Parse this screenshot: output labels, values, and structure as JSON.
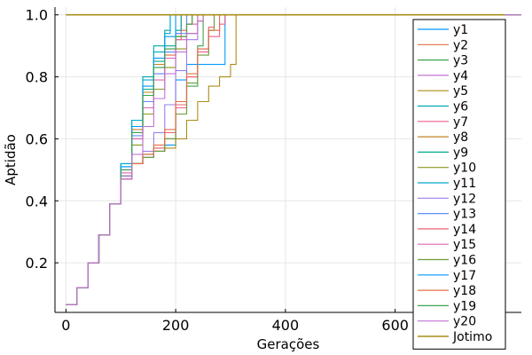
{
  "chart_data": {
    "type": "line",
    "xlabel": "Gerações",
    "ylabel": "Aptidão",
    "xlim": [
      -20,
      830
    ],
    "ylim": [
      0.04,
      1.025
    ],
    "xticks": [
      0,
      200,
      400,
      600
    ],
    "yticks": [
      0.2,
      0.4,
      0.6,
      0.8,
      1.0
    ],
    "xtick_labels": [
      "0",
      "200",
      "400",
      "600"
    ],
    "ytick_labels": [
      "0.2",
      "0.4",
      "0.6",
      "0.8",
      "1.0"
    ],
    "grid": true,
    "legend_position": "right",
    "series": [
      {
        "name": "y1",
        "color": "#009AFA",
        "x": [
          0,
          20,
          40,
          60,
          80,
          100,
          120,
          140,
          160,
          180,
          200,
          220,
          240,
          260,
          280,
          290,
          300
        ],
        "y": [
          0.065,
          0.12,
          0.2,
          0.29,
          0.39,
          0.48,
          0.52,
          0.54,
          0.56,
          0.58,
          0.79,
          0.84,
          0.84,
          0.84,
          0.84,
          1.0,
          1.0
        ]
      },
      {
        "name": "y2",
        "color": "#E36F47",
        "x": [
          0,
          20,
          40,
          60,
          80,
          100,
          120,
          140,
          160,
          180,
          200,
          210,
          220
        ],
        "y": [
          0.065,
          0.12,
          0.2,
          0.29,
          0.39,
          0.48,
          0.6,
          0.72,
          0.81,
          0.87,
          0.92,
          0.95,
          1.0
        ]
      },
      {
        "name": "y3",
        "color": "#3EA44E",
        "x": [
          0,
          20,
          40,
          60,
          80,
          100,
          120,
          140,
          160,
          180,
          200,
          220,
          240,
          250
        ],
        "y": [
          0.065,
          0.12,
          0.2,
          0.29,
          0.39,
          0.47,
          0.52,
          0.55,
          0.57,
          0.6,
          0.68,
          0.77,
          0.9,
          1.0
        ]
      },
      {
        "name": "y4",
        "color": "#C371D2",
        "x": [
          0,
          20,
          40,
          60,
          80,
          100,
          120,
          140,
          160,
          180,
          200,
          210
        ],
        "y": [
          0.065,
          0.12,
          0.2,
          0.29,
          0.39,
          0.5,
          0.62,
          0.74,
          0.83,
          0.88,
          0.94,
          1.0
        ]
      },
      {
        "name": "y5",
        "color": "#AC8E18",
        "x": [
          0,
          20,
          40,
          60,
          80,
          100,
          120,
          140,
          160,
          180,
          200,
          220,
          240,
          260,
          280,
          300,
          310
        ],
        "y": [
          0.065,
          0.12,
          0.2,
          0.29,
          0.39,
          0.48,
          0.52,
          0.54,
          0.56,
          0.57,
          0.6,
          0.66,
          0.72,
          0.77,
          0.8,
          0.84,
          1.0
        ]
      },
      {
        "name": "y6",
        "color": "#00A9AD",
        "x": [
          0,
          20,
          40,
          60,
          80,
          100,
          120,
          140,
          160,
          180,
          190
        ],
        "y": [
          0.065,
          0.12,
          0.2,
          0.29,
          0.39,
          0.52,
          0.66,
          0.8,
          0.9,
          0.95,
          1.0
        ]
      },
      {
        "name": "y7",
        "color": "#ED5E93",
        "x": [
          0,
          20,
          40,
          60,
          80,
          100,
          120,
          140,
          160,
          180,
          200,
          220,
          240,
          260,
          280,
          290
        ],
        "y": [
          0.065,
          0.12,
          0.2,
          0.29,
          0.39,
          0.47,
          0.52,
          0.54,
          0.56,
          0.6,
          0.7,
          0.8,
          0.88,
          0.93,
          0.97,
          1.0
        ]
      },
      {
        "name": "y8",
        "color": "#C68225",
        "x": [
          0,
          20,
          40,
          60,
          80,
          100,
          120,
          140,
          160,
          180,
          200,
          220,
          230
        ],
        "y": [
          0.065,
          0.12,
          0.2,
          0.29,
          0.39,
          0.5,
          0.63,
          0.75,
          0.84,
          0.89,
          0.93,
          0.97,
          1.0
        ]
      },
      {
        "name": "y9",
        "color": "#00A98D",
        "x": [
          0,
          20,
          40,
          60,
          80,
          100,
          120,
          140,
          160,
          180,
          200,
          210
        ],
        "y": [
          0.065,
          0.12,
          0.2,
          0.29,
          0.39,
          0.51,
          0.64,
          0.76,
          0.85,
          0.9,
          0.95,
          1.0
        ]
      },
      {
        "name": "y10",
        "color": "#8E971E",
        "x": [
          0,
          20,
          40,
          60,
          80,
          100,
          120,
          140,
          160,
          180,
          200,
          220,
          240,
          250
        ],
        "y": [
          0.065,
          0.12,
          0.2,
          0.29,
          0.39,
          0.48,
          0.58,
          0.68,
          0.76,
          0.83,
          0.89,
          0.94,
          0.98,
          1.0
        ]
      },
      {
        "name": "y11",
        "color": "#00A8CB",
        "x": [
          0,
          20,
          40,
          60,
          80,
          100,
          120,
          140,
          160,
          180,
          190
        ],
        "y": [
          0.065,
          0.12,
          0.2,
          0.29,
          0.39,
          0.52,
          0.66,
          0.79,
          0.88,
          0.94,
          1.0
        ]
      },
      {
        "name": "y12",
        "color": "#9B7FE9",
        "x": [
          0,
          20,
          40,
          60,
          80,
          100,
          120,
          140,
          160,
          180,
          200,
          220,
          240
        ],
        "y": [
          0.065,
          0.12,
          0.2,
          0.29,
          0.39,
          0.48,
          0.52,
          0.56,
          0.62,
          0.71,
          0.82,
          0.92,
          1.0
        ]
      },
      {
        "name": "y13",
        "color": "#618DF6",
        "x": [
          0,
          20,
          40,
          60,
          80,
          100,
          120,
          140,
          160,
          180,
          200,
          220
        ],
        "y": [
          0.065,
          0.12,
          0.2,
          0.29,
          0.39,
          0.5,
          0.61,
          0.72,
          0.81,
          0.88,
          0.94,
          1.0
        ]
      },
      {
        "name": "y14",
        "color": "#F06173",
        "x": [
          0,
          20,
          40,
          60,
          80,
          100,
          120,
          140,
          160,
          180,
          200,
          220,
          240,
          260,
          270
        ],
        "y": [
          0.065,
          0.12,
          0.2,
          0.29,
          0.39,
          0.47,
          0.52,
          0.55,
          0.57,
          0.62,
          0.71,
          0.8,
          0.89,
          0.96,
          1.0
        ]
      },
      {
        "name": "y15",
        "color": "#DD64B5",
        "x": [
          0,
          20,
          40,
          60,
          80,
          100,
          120,
          140,
          160,
          180,
          200,
          220,
          240
        ],
        "y": [
          0.065,
          0.12,
          0.2,
          0.29,
          0.39,
          0.49,
          0.6,
          0.7,
          0.79,
          0.86,
          0.92,
          0.97,
          1.0
        ]
      },
      {
        "name": "y16",
        "color": "#6B9D3B",
        "x": [
          0,
          20,
          40,
          60,
          80,
          100,
          120,
          140,
          160,
          180,
          200,
          220,
          240,
          260,
          270
        ],
        "y": [
          0.065,
          0.12,
          0.2,
          0.29,
          0.39,
          0.47,
          0.52,
          0.54,
          0.56,
          0.6,
          0.68,
          0.78,
          0.87,
          0.95,
          1.0
        ]
      },
      {
        "name": "y17",
        "color": "#009AFA",
        "x": [
          0,
          20,
          40,
          60,
          80,
          100,
          120,
          140,
          160,
          180,
          200
        ],
        "y": [
          0.065,
          0.12,
          0.2,
          0.29,
          0.39,
          0.51,
          0.64,
          0.77,
          0.86,
          0.93,
          1.0
        ]
      },
      {
        "name": "y18",
        "color": "#E36F47",
        "x": [
          0,
          20,
          40,
          60,
          80,
          100,
          120,
          140,
          160,
          180,
          200,
          220,
          240,
          260,
          280
        ],
        "y": [
          0.065,
          0.12,
          0.2,
          0.29,
          0.39,
          0.47,
          0.52,
          0.55,
          0.58,
          0.63,
          0.72,
          0.81,
          0.89,
          0.95,
          1.0
        ]
      },
      {
        "name": "y19",
        "color": "#3EA44E",
        "x": [
          0,
          20,
          40,
          60,
          80,
          100,
          120,
          140,
          160,
          180,
          200,
          220,
          230
        ],
        "y": [
          0.065,
          0.12,
          0.2,
          0.29,
          0.39,
          0.5,
          0.62,
          0.74,
          0.83,
          0.89,
          0.93,
          0.97,
          1.0
        ]
      },
      {
        "name": "y20",
        "color": "#C371D2",
        "x": [
          0,
          20,
          40,
          60,
          80,
          100,
          120,
          140,
          160,
          180,
          200,
          220,
          240,
          250
        ],
        "y": [
          0.065,
          0.12,
          0.2,
          0.29,
          0.39,
          0.47,
          0.55,
          0.64,
          0.73,
          0.81,
          0.88,
          0.94,
          0.98,
          1.0
        ]
      },
      {
        "name": "Jotimo",
        "color": "#AC8E18",
        "x": [
          0,
          800
        ],
        "y": [
          1.0,
          1.0
        ]
      }
    ]
  }
}
